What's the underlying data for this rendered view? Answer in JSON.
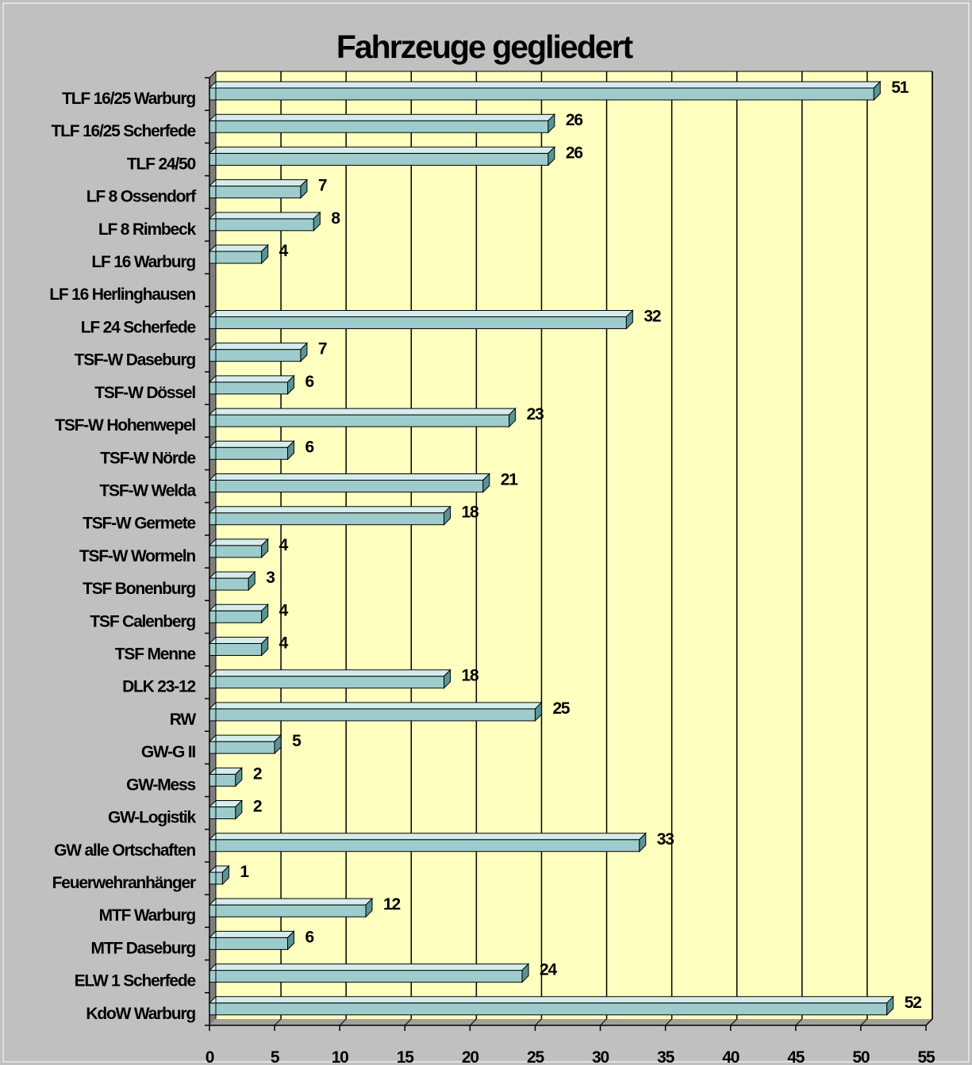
{
  "chart_data": {
    "type": "bar",
    "orientation": "horizontal",
    "title": "Fahrzeuge gegliedert",
    "categories": [
      "TLF 16/25 Warburg",
      "TLF 16/25 Scherfede",
      "TLF 24/50",
      "LF 8 Ossendorf",
      "LF 8 Rimbeck",
      "LF 16 Warburg",
      "LF 16 Herlinghausen",
      "LF 24 Scherfede",
      "TSF-W Daseburg",
      "TSF-W Dössel",
      "TSF-W Hohenwepel",
      "TSF-W Nörde",
      "TSF-W Welda",
      "TSF-W Germete",
      "TSF-W Wormeln",
      "TSF Bonenburg",
      "TSF Calenberg",
      "TSF Menne",
      "DLK 23-12",
      "RW",
      "GW-G II",
      "GW-Mess",
      "GW-Logistik",
      "GW alle Ortschaften",
      "Feuerwehranhänger",
      "MTF Warburg",
      "MTF Daseburg",
      "ELW 1 Scherfede",
      "KdoW Warburg"
    ],
    "values": [
      51,
      26,
      26,
      7,
      8,
      4,
      null,
      32,
      7,
      6,
      23,
      6,
      21,
      18,
      4,
      3,
      4,
      4,
      18,
      25,
      5,
      2,
      2,
      33,
      1,
      12,
      6,
      24,
      52
    ],
    "xlim": [
      0,
      55
    ],
    "xticks": [
      0,
      5,
      10,
      15,
      20,
      25,
      30,
      35,
      40,
      45,
      50,
      55
    ],
    "xlabel": "",
    "ylabel": "",
    "grid": true,
    "colors": {
      "background": "#c0c0c0",
      "plot_area": "#ffffc0",
      "bar_face": "#9ecccc",
      "bar_top": "#d4ecec",
      "bar_side": "#5a9494",
      "wall": "#808080",
      "floor": "#a0a0a0"
    }
  }
}
